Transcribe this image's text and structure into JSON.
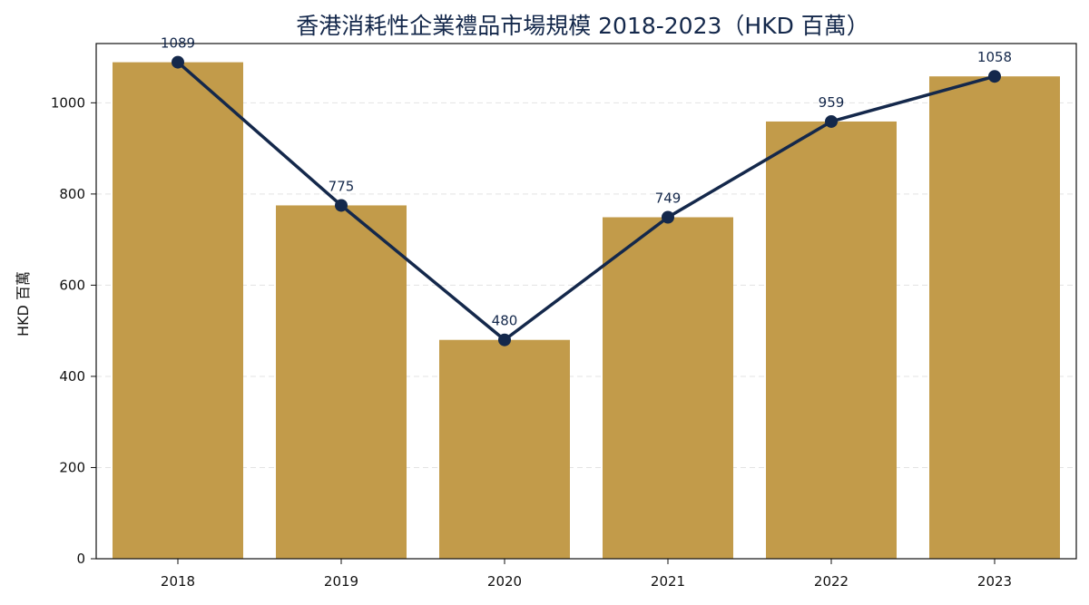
{
  "chart_data": {
    "type": "bar",
    "title": "香港消耗性企業禮品市場規模 2018-2023（HKD 百萬）",
    "xlabel": "",
    "ylabel": "HKD 百萬",
    "categories": [
      "2018",
      "2019",
      "2020",
      "2021",
      "2022",
      "2023"
    ],
    "series": [
      {
        "type": "bar",
        "values": [
          1089,
          775,
          480,
          749,
          959,
          1058
        ]
      },
      {
        "type": "line",
        "values": [
          1089,
          775,
          480,
          749,
          959,
          1058
        ],
        "data_labels": [
          "1089",
          "775",
          "480",
          "749",
          "959",
          "1058"
        ]
      }
    ],
    "ylim": [
      0,
      1130
    ],
    "yticks": [
      0,
      200,
      400,
      600,
      800,
      1000
    ],
    "grid": "y-dashed",
    "legend": "none",
    "colors": {
      "bar": "#c29b4a",
      "line": "#14284b",
      "title": "#14284b",
      "grid": "#e3e3e3"
    }
  }
}
